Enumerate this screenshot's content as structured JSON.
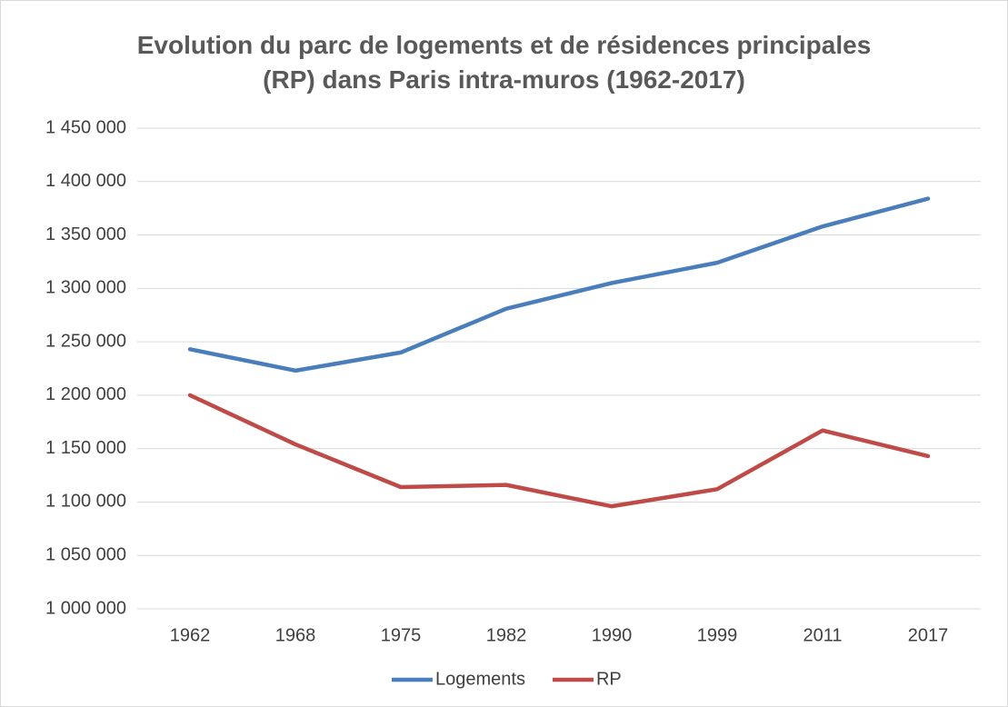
{
  "chart_data": {
    "type": "line",
    "title": "Evolution du parc de logements et de résidences principales (RP) dans Paris intra-muros (1962-2017)",
    "categories": [
      "1962",
      "1968",
      "1975",
      "1982",
      "1990",
      "1999",
      "2011",
      "2017"
    ],
    "series": [
      {
        "name": "Logements",
        "color": "#4a7ebb",
        "values": [
          1243000,
          1223000,
          1240000,
          1281000,
          1305000,
          1324000,
          1358000,
          1384000
        ]
      },
      {
        "name": "RP",
        "color": "#be4b48",
        "values": [
          1200000,
          1154000,
          1114000,
          1116000,
          1096000,
          1112000,
          1167000,
          1143000
        ]
      }
    ],
    "ylim": [
      1000000,
      1450000
    ],
    "yticks": [
      {
        "value": 1000000,
        "label": "1 000 000"
      },
      {
        "value": 1050000,
        "label": "1 050 000"
      },
      {
        "value": 1100000,
        "label": "1 100 000"
      },
      {
        "value": 1150000,
        "label": "1 150 000"
      },
      {
        "value": 1200000,
        "label": "1 200 000"
      },
      {
        "value": 1250000,
        "label": "1 250 000"
      },
      {
        "value": 1300000,
        "label": "1 300 000"
      },
      {
        "value": 1350000,
        "label": "1 350 000"
      },
      {
        "value": 1400000,
        "label": "1 400 000"
      },
      {
        "value": 1450000,
        "label": "1 450 000"
      }
    ],
    "grid": true,
    "legend": "bottom"
  }
}
